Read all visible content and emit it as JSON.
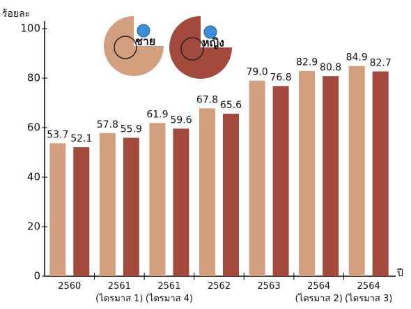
{
  "chart_data": {
    "type": "bar",
    "y_label": "ร้อยละ",
    "x_label": "ปี",
    "categories": [
      "2560",
      "2561\n(ไตรมาส 1)",
      "2561\n(ไตรมาส 4)",
      "2562",
      "2563",
      "2564\n(ไตรมาส 2)",
      "2564\n(ไตรมาส 3)"
    ],
    "series": [
      {
        "name": "ชาย",
        "color": "#d2a07f",
        "values": [
          53.7,
          57.8,
          61.9,
          67.8,
          79.0,
          82.9,
          84.9
        ],
        "value_labels": [
          "53.7",
          "57.8",
          "61.9",
          "67.8",
          "79.0",
          "82.9",
          "84.9"
        ]
      },
      {
        "name": "หญิง",
        "color": "#a44a3d",
        "values": [
          52.1,
          55.9,
          59.6,
          65.6,
          76.8,
          80.8,
          82.7
        ],
        "value_labels": [
          "52.1",
          "55.9",
          "59.6",
          "65.6",
          "76.8",
          "80.8",
          "82.7"
        ]
      }
    ],
    "ylim": [
      0,
      100
    ],
    "yticks": [
      0,
      20,
      40,
      60,
      80,
      100
    ]
  }
}
